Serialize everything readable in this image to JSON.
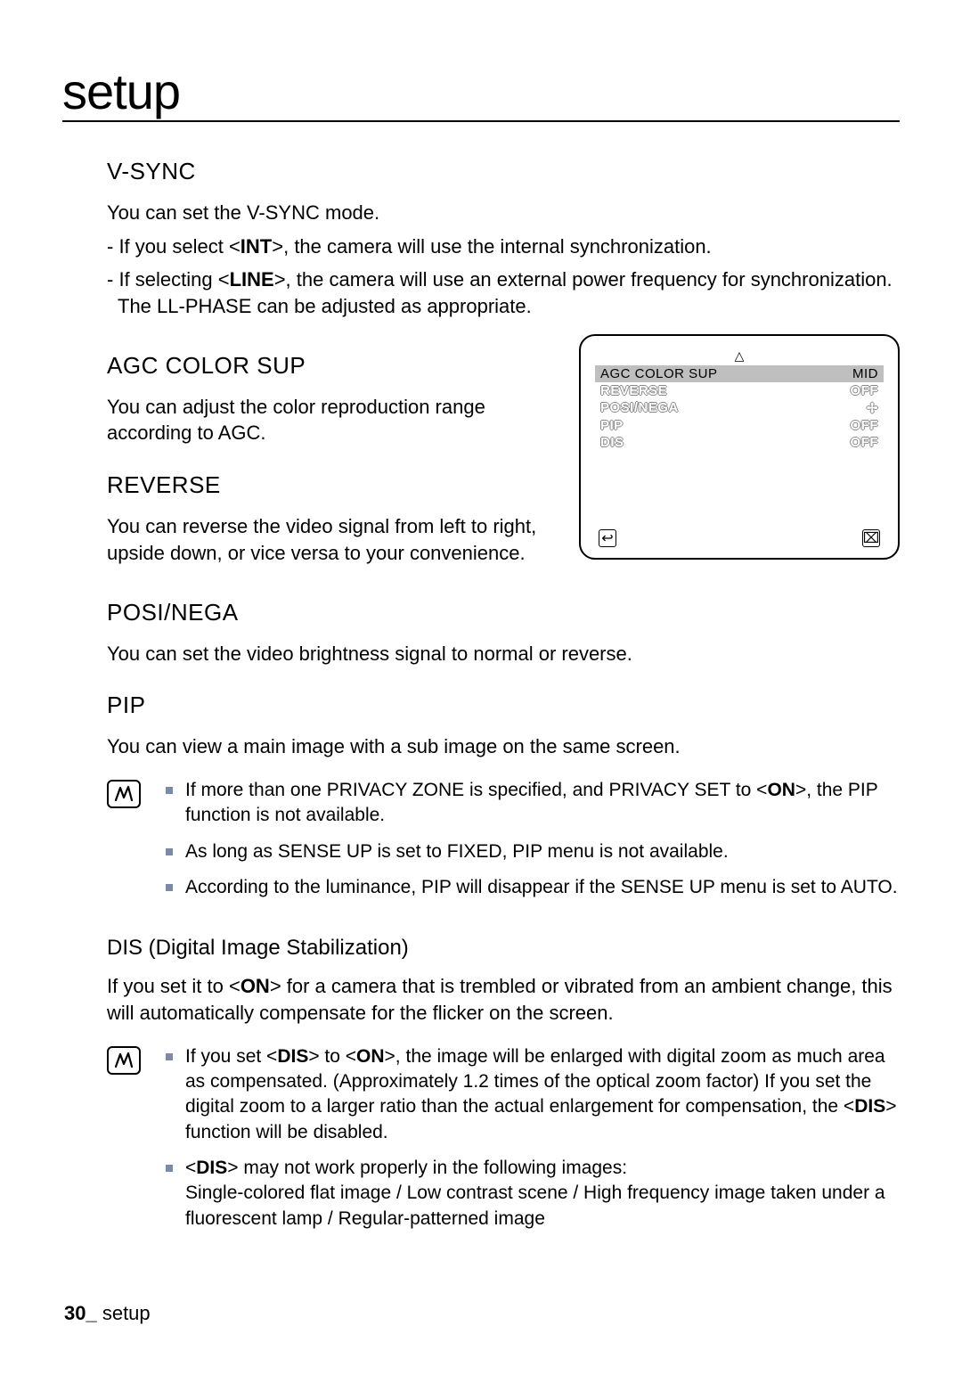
{
  "header": {
    "title": "setup"
  },
  "vsync": {
    "heading": "V-SYNC",
    "intro": "You can set the V-SYNC mode.",
    "line1_pre": "- If you select <",
    "line1_b": "INT",
    "line1_post": ">, the camera will use the internal synchronization.",
    "line2_pre": "- If selecting <",
    "line2_b": "LINE",
    "line2_post": ">, the camera will use an external power frequency for synchronization. The LL-PHASE can be adjusted as appropriate."
  },
  "agc": {
    "heading": "AGC COLOR SUP",
    "body": "You can adjust the color reproduction range according to AGC."
  },
  "reverse": {
    "heading": "REVERSE",
    "body": "You can reverse the video signal from left to right, upside down, or vice versa to your convenience."
  },
  "osd": {
    "triangle": "△",
    "rows": [
      {
        "label": "AGC COLOR SUP",
        "value": "MID",
        "selected": true
      },
      {
        "label": "REVERSE",
        "value": "OFF",
        "selected": false
      },
      {
        "label": "POSI/NEGA",
        "value": "✢",
        "selected": false
      },
      {
        "label": "PIP",
        "value": "OFF",
        "selected": false
      },
      {
        "label": "DIS",
        "value": "OFF",
        "selected": false
      }
    ],
    "back_icon": "↩",
    "close_icon": "⌧",
    "colors": {
      "selected_bg": "#bfbfbf",
      "border": "#000000"
    }
  },
  "posinega": {
    "heading": "POSI/NEGA",
    "body": "You can set the video brightness signal to normal or reverse."
  },
  "pip": {
    "heading": "PIP",
    "body": "You can view a main image with a sub image on the same screen.",
    "notes": {
      "n1_pre": "If more than one PRIVACY ZONE is specified, and PRIVACY SET to <",
      "n1_b": "ON",
      "n1_post": ">, the PIP function is not available.",
      "n2": "As long as SENSE UP is set to FIXED, PIP menu is not available.",
      "n3": "According to the luminance, PIP will disappear if the SENSE UP menu is set to AUTO."
    }
  },
  "dis": {
    "heading": "DIS (Digital Image Stabilization)",
    "body_pre": "If you set it to <",
    "body_b": "ON",
    "body_post": "> for a camera that is trembled or vibrated from an ambient change, this will automatically compensate for the flicker on the screen.",
    "notes": {
      "n1_a": "If you set <",
      "n1_b1": "DIS",
      "n1_c": "> to <",
      "n1_b2": "ON",
      "n1_d": ">, the image will be enlarged with digital zoom as much area as compensated. (Approximately 1.2 times of the optical zoom factor) If you set the digital zoom to a larger ratio than the actual enlargement for compensation, the <",
      "n1_b3": "DIS",
      "n1_e": "> function will be disabled.",
      "n2_a": "<",
      "n2_b": "DIS",
      "n2_c": "> may not work properly in the following images:",
      "n2_d": "Single-colored flat image / Low contrast scene / High frequency image taken under a fluorescent lamp / Regular-patterned image"
    }
  },
  "footer": {
    "page": "30_",
    "label": " setup"
  }
}
